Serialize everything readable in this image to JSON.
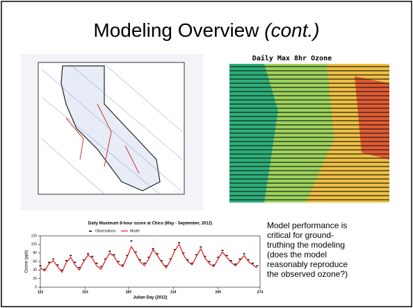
{
  "title": {
    "main": "Modeling Overview",
    "italic": "(cont.)"
  },
  "map_caption": "Daily Max 8hr Ozone",
  "text_lines": [
    "Model performance is",
    "critical for ground-",
    "truthing the modeling",
    "(does the model",
    "reasonably reproduce",
    "the observed ozone?)"
  ],
  "chart_data": {
    "type": "line",
    "title": "Daily Maximum 8-hour ozone at Chico (May - September, 2012)",
    "x_label": "Julian Day (2012)",
    "y_label": "Ozone (ppb)",
    "x": [
      122,
      125,
      128,
      131,
      134,
      137,
      140,
      143,
      146,
      149,
      152,
      155,
      158,
      161,
      164,
      167,
      170,
      173,
      176,
      179,
      182,
      185,
      188,
      191,
      194,
      197,
      200,
      203,
      206,
      209,
      212,
      215,
      218,
      221,
      224,
      227,
      230,
      233,
      236,
      239,
      242,
      245,
      248,
      251,
      254,
      257,
      260,
      263,
      266,
      269,
      272
    ],
    "series": [
      {
        "name": "Observations",
        "color": "#000000",
        "values": [
          50,
          42,
          58,
          66,
          52,
          40,
          62,
          74,
          58,
          46,
          64,
          78,
          72,
          56,
          48,
          66,
          84,
          76,
          60,
          52,
          74,
          108,
          82,
          64,
          56,
          70,
          90,
          78,
          62,
          50,
          66,
          88,
          104,
          80,
          64,
          56,
          76,
          94,
          72,
          60,
          52,
          70,
          86,
          74,
          62,
          54,
          66,
          78,
          64,
          56,
          50
        ]
      },
      {
        "name": "Model",
        "color": "#e0201b",
        "values": [
          45,
          38,
          55,
          62,
          48,
          35,
          58,
          70,
          52,
          40,
          60,
          75,
          68,
          50,
          42,
          63,
          80,
          72,
          55,
          48,
          70,
          95,
          78,
          60,
          50,
          66,
          88,
          74,
          58,
          45,
          62,
          85,
          100,
          76,
          60,
          52,
          72,
          90,
          68,
          55,
          48,
          66,
          82,
          70,
          58,
          50,
          62,
          74,
          60,
          52,
          45
        ]
      }
    ],
    "xlim": [
      122,
      274
    ],
    "xticks": [
      122,
      153,
      183,
      214,
      245,
      274
    ],
    "ylim": [
      0,
      120
    ],
    "yticks": [
      0,
      20,
      40,
      60,
      80,
      100,
      120
    ]
  }
}
